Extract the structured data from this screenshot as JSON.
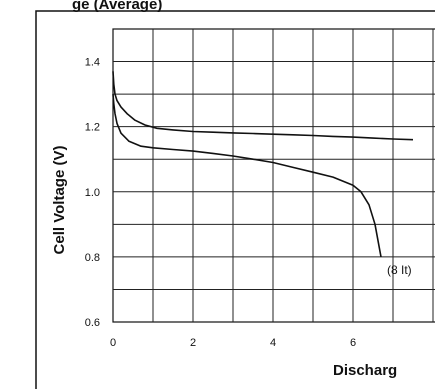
{
  "chart_data": {
    "type": "line",
    "title": "",
    "title_partial": "ge (Average) ",
    "xlabel": "Discharg",
    "ylabel": "Cell Voltage (V)",
    "xlim": [
      0,
      7.5
    ],
    "ylim": [
      0.6,
      1.5
    ],
    "x_ticks": [
      0,
      2,
      4,
      6
    ],
    "x_tick_labels": [
      "0",
      "2",
      "4",
      "6"
    ],
    "y_ticks": [
      0.6,
      0.8,
      1.0,
      1.2,
      1.4
    ],
    "y_tick_labels": [
      "0.6",
      "0.8",
      "1.0",
      "1.2",
      "1.4"
    ],
    "grid": true,
    "series": [
      {
        "x": [
          0.0,
          0.02,
          0.05,
          0.1,
          0.2,
          0.35,
          0.55,
          0.8,
          1.1,
          1.5,
          2.0,
          2.5,
          3.0,
          3.5,
          4.0,
          4.5,
          5.0,
          5.5,
          6.0,
          6.5,
          7.0,
          7.5
        ],
        "y": [
          1.37,
          1.33,
          1.3,
          1.28,
          1.26,
          1.24,
          1.22,
          1.205,
          1.195,
          1.19,
          1.185,
          1.183,
          1.181,
          1.179,
          1.177,
          1.175,
          1.173,
          1.17,
          1.168,
          1.165,
          1.162,
          1.16
        ]
      },
      {
        "x": [
          0.0,
          0.02,
          0.05,
          0.1,
          0.2,
          0.4,
          0.7,
          1.0,
          1.5,
          2.0,
          2.5,
          3.0,
          3.5,
          4.0,
          4.5,
          5.0,
          5.5,
          6.0,
          6.2,
          6.4,
          6.55,
          6.7
        ],
        "y": [
          1.3,
          1.27,
          1.24,
          1.21,
          1.18,
          1.155,
          1.14,
          1.135,
          1.13,
          1.125,
          1.118,
          1.11,
          1.1,
          1.09,
          1.075,
          1.06,
          1.045,
          1.02,
          1.0,
          0.96,
          0.9,
          0.8
        ]
      }
    ],
    "annotations": [
      {
        "text": "(8 It)",
        "x": 6.85,
        "y": 0.76
      }
    ]
  }
}
